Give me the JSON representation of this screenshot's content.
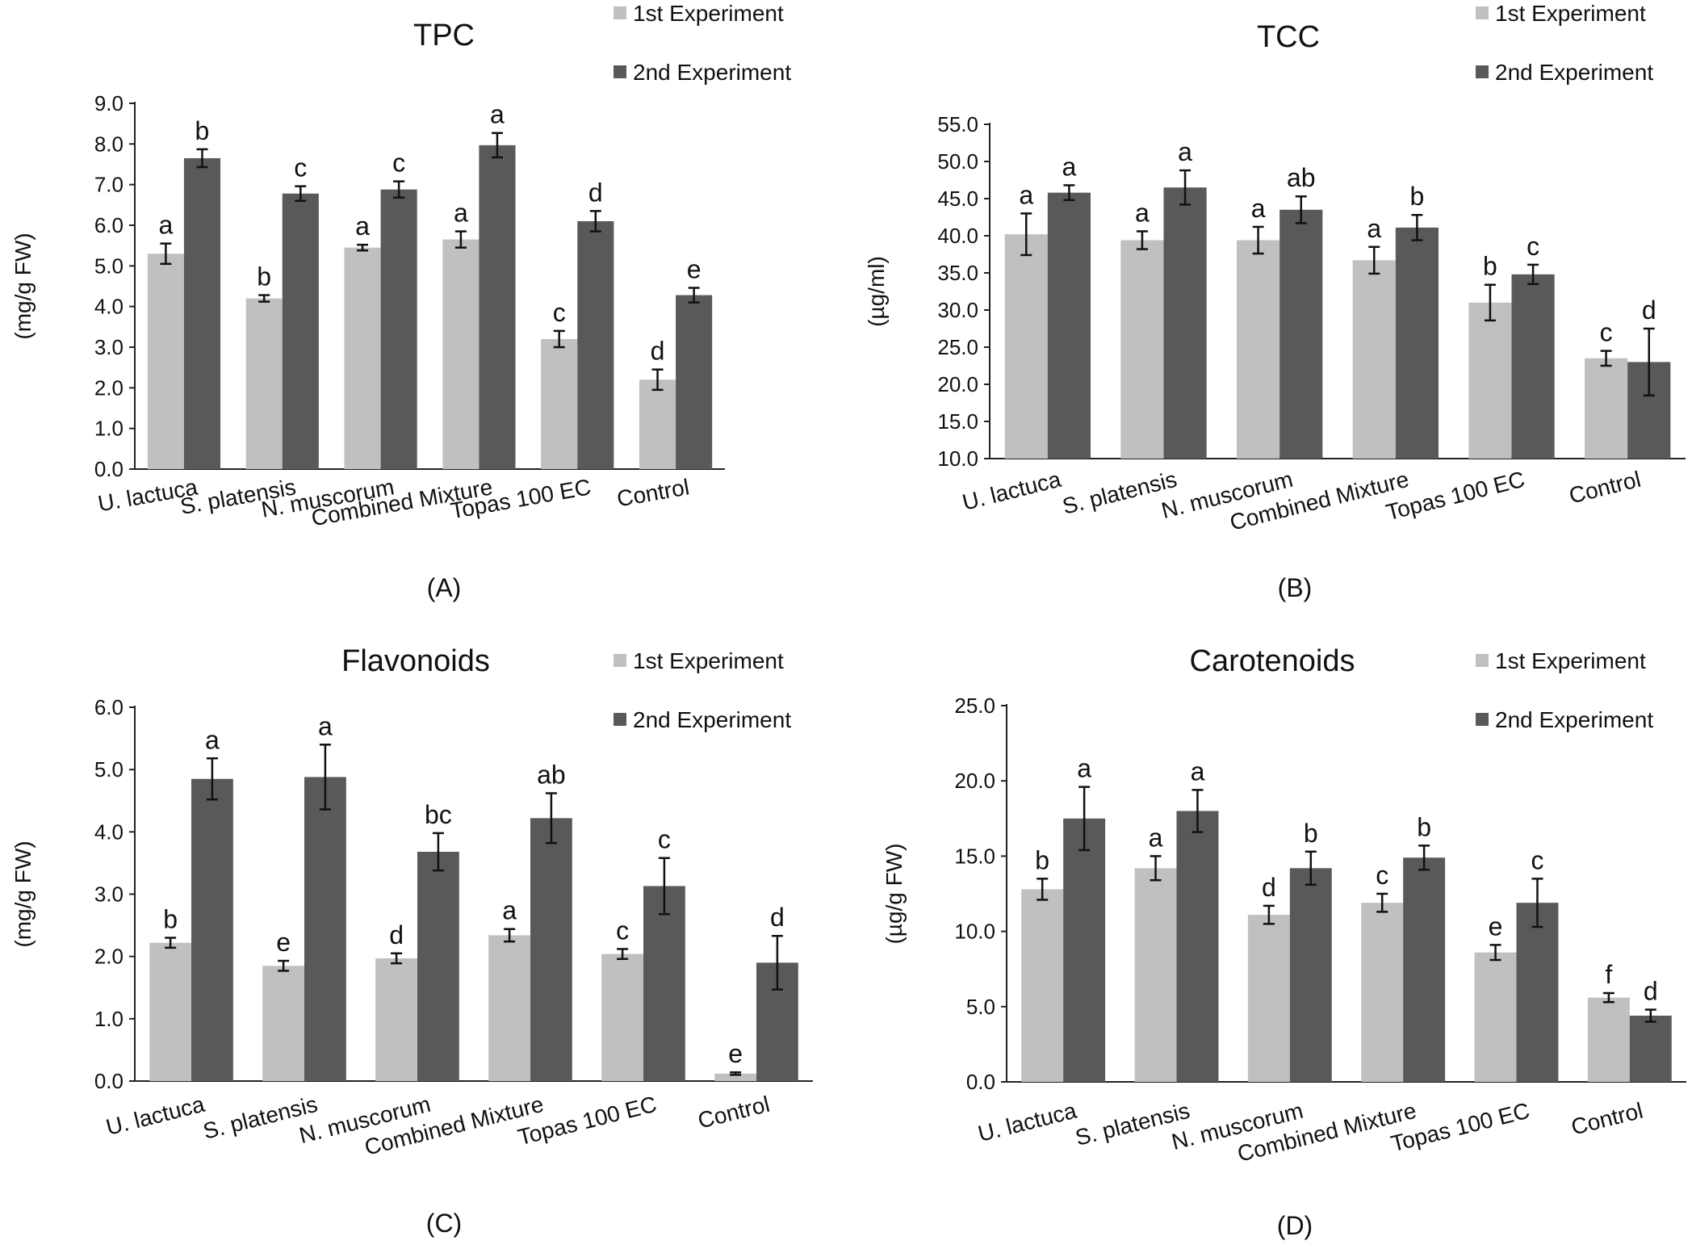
{
  "figure": {
    "legend": {
      "series1": "1st Experiment",
      "series2": "2nd Experiment"
    },
    "colors": {
      "series1": "#c0c0c0",
      "series2": "#595959",
      "axis": "#222222",
      "text": "#111111"
    }
  },
  "chart_data": [
    {
      "type": "bar",
      "panel_label": "(A)",
      "title": "TPC",
      "ylabel": "(mg/g FW)",
      "xlabel": "",
      "ylim": [
        0,
        9
      ],
      "ytick_step": 1,
      "ytick_decimals": 1,
      "grid": false,
      "legend_position": "top-right",
      "categories": [
        "U. lactuca",
        "S. platensis",
        "N. muscorum",
        "Combined Mixture",
        "Topas 100 EC",
        "Control"
      ],
      "series": [
        {
          "name": "1st Experiment",
          "values": [
            5.3,
            4.2,
            5.45,
            5.65,
            3.2,
            2.2
          ],
          "errors": [
            0.25,
            0.08,
            0.07,
            0.2,
            0.2,
            0.25
          ],
          "letters": [
            "a",
            "b",
            "a",
            "a",
            "c",
            "d"
          ]
        },
        {
          "name": "2nd Experiment",
          "values": [
            7.65,
            6.78,
            6.88,
            7.97,
            6.1,
            4.28
          ],
          "errors": [
            0.22,
            0.18,
            0.2,
            0.3,
            0.25,
            0.18
          ],
          "letters": [
            "b",
            "c",
            "c",
            "a",
            "d",
            "e"
          ]
        }
      ]
    },
    {
      "type": "bar",
      "panel_label": "(B)",
      "title": "TCC",
      "ylabel": "(µg/ml)",
      "xlabel": "",
      "ylim": [
        10,
        55
      ],
      "ytick_step": 5,
      "ytick_decimals": 1,
      "grid": false,
      "legend_position": "top-right",
      "categories": [
        "U. lactuca",
        "S. platensis",
        "N. muscorum",
        "Combined Mixture",
        "Topas 100 EC",
        "Control"
      ],
      "series": [
        {
          "name": "1st Experiment",
          "values": [
            40.2,
            39.4,
            39.4,
            36.7,
            31.0,
            23.5
          ],
          "errors": [
            2.8,
            1.2,
            1.8,
            1.8,
            2.4,
            1.0
          ],
          "letters": [
            "a",
            "a",
            "a",
            "a",
            "b",
            "c"
          ]
        },
        {
          "name": "2nd Experiment",
          "values": [
            45.8,
            46.5,
            43.5,
            41.1,
            34.8,
            23.0
          ],
          "errors": [
            1.0,
            2.3,
            1.8,
            1.7,
            1.3,
            4.5
          ],
          "letters": [
            "a",
            "a",
            "ab",
            "b",
            "c",
            "d"
          ]
        }
      ]
    },
    {
      "type": "bar",
      "panel_label": "(C)",
      "title": "Flavonoids",
      "ylabel": "(mg/g FW)",
      "xlabel": "",
      "ylim": [
        0,
        6
      ],
      "ytick_step": 1,
      "ytick_decimals": 1,
      "grid": false,
      "legend_position": "top-right",
      "categories": [
        "U. lactuca",
        "S. platensis",
        "N. muscorum",
        "Combined Mixture",
        "Topas 100 EC",
        "Control"
      ],
      "series": [
        {
          "name": "1st Experiment",
          "values": [
            2.22,
            1.85,
            1.97,
            2.34,
            2.04,
            0.12
          ],
          "errors": [
            0.08,
            0.08,
            0.08,
            0.1,
            0.08,
            0.02
          ],
          "letters": [
            "b",
            "e",
            "d",
            "a",
            "c",
            "e"
          ]
        },
        {
          "name": "2nd Experiment",
          "values": [
            4.85,
            4.88,
            3.68,
            4.22,
            3.13,
            1.9
          ],
          "errors": [
            0.33,
            0.52,
            0.3,
            0.4,
            0.45,
            0.43
          ],
          "letters": [
            "a",
            "a",
            "bc",
            "ab",
            "c",
            "d"
          ]
        }
      ]
    },
    {
      "type": "bar",
      "panel_label": "(D)",
      "title": "Carotenoids",
      "ylabel": "(µg/g FW)",
      "xlabel": "",
      "ylim": [
        0,
        25
      ],
      "ytick_step": 5,
      "ytick_decimals": 1,
      "grid": false,
      "legend_position": "top-right",
      "categories": [
        "U. lactuca",
        "S. platensis",
        "N. muscorum",
        "Combined Mixture",
        "Topas 100 EC",
        "Control"
      ],
      "series": [
        {
          "name": "1st Experiment",
          "values": [
            12.8,
            14.2,
            11.1,
            11.9,
            8.6,
            5.6
          ],
          "errors": [
            0.7,
            0.8,
            0.6,
            0.6,
            0.5,
            0.3
          ],
          "letters": [
            "b",
            "a",
            "d",
            "c",
            "e",
            "f"
          ]
        },
        {
          "name": "2nd Experiment",
          "values": [
            17.5,
            18.0,
            14.2,
            14.9,
            11.9,
            4.4
          ],
          "errors": [
            2.1,
            1.4,
            1.1,
            0.8,
            1.6,
            0.4
          ],
          "letters": [
            "a",
            "a",
            "b",
            "b",
            "c",
            "d"
          ]
        }
      ]
    }
  ]
}
